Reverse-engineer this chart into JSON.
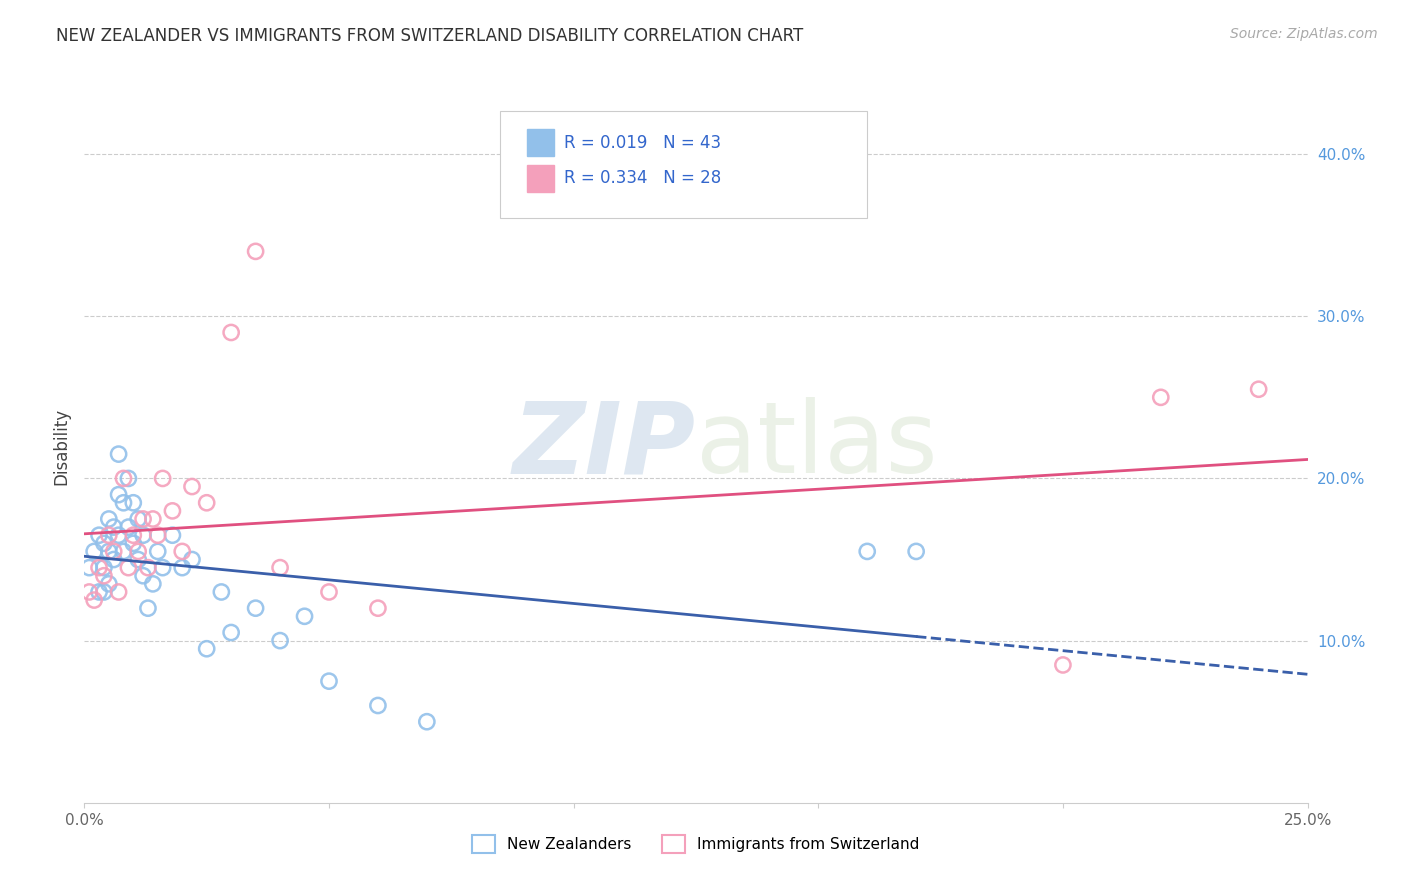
{
  "title": "NEW ZEALANDER VS IMMIGRANTS FROM SWITZERLAND DISABILITY CORRELATION CHART",
  "source": "Source: ZipAtlas.com",
  "ylabel": "Disability",
  "xlim": [
    0.0,
    0.25
  ],
  "ylim": [
    0.0,
    0.44
  ],
  "x_ticks": [
    0.0,
    0.05,
    0.1,
    0.15,
    0.2,
    0.25
  ],
  "x_tick_labels": [
    "0.0%",
    "",
    "",
    "",
    "",
    "25.0%"
  ],
  "y_ticks": [
    0.1,
    0.2,
    0.3,
    0.4
  ],
  "y_tick_labels": [
    "10.0%",
    "20.0%",
    "30.0%",
    "40.0%"
  ],
  "legend_label1": "New Zealanders",
  "legend_label2": "Immigrants from Switzerland",
  "r1": 0.019,
  "n1": 43,
  "r2": 0.334,
  "n2": 28,
  "color1": "#92c0ea",
  "color2": "#f4a0bb",
  "line_color1": "#3a5faa",
  "line_color2": "#e05080",
  "scatter1_x": [
    0.001,
    0.002,
    0.003,
    0.003,
    0.004,
    0.004,
    0.004,
    0.005,
    0.005,
    0.005,
    0.006,
    0.006,
    0.007,
    0.007,
    0.007,
    0.008,
    0.008,
    0.009,
    0.009,
    0.01,
    0.01,
    0.011,
    0.011,
    0.012,
    0.012,
    0.013,
    0.014,
    0.015,
    0.016,
    0.018,
    0.02,
    0.022,
    0.025,
    0.028,
    0.03,
    0.035,
    0.04,
    0.045,
    0.05,
    0.06,
    0.07,
    0.16,
    0.17
  ],
  "scatter1_y": [
    0.145,
    0.155,
    0.13,
    0.165,
    0.16,
    0.145,
    0.13,
    0.175,
    0.155,
    0.135,
    0.17,
    0.15,
    0.215,
    0.19,
    0.165,
    0.185,
    0.155,
    0.2,
    0.17,
    0.185,
    0.16,
    0.175,
    0.15,
    0.165,
    0.14,
    0.12,
    0.135,
    0.155,
    0.145,
    0.165,
    0.145,
    0.15,
    0.095,
    0.13,
    0.105,
    0.12,
    0.1,
    0.115,
    0.075,
    0.06,
    0.05,
    0.155,
    0.155
  ],
  "scatter2_x": [
    0.001,
    0.002,
    0.003,
    0.004,
    0.005,
    0.006,
    0.007,
    0.008,
    0.009,
    0.01,
    0.011,
    0.012,
    0.013,
    0.014,
    0.015,
    0.016,
    0.018,
    0.02,
    0.022,
    0.025,
    0.03,
    0.035,
    0.04,
    0.05,
    0.06,
    0.2,
    0.22,
    0.24
  ],
  "scatter2_y": [
    0.13,
    0.125,
    0.145,
    0.14,
    0.165,
    0.155,
    0.13,
    0.2,
    0.145,
    0.165,
    0.155,
    0.175,
    0.145,
    0.175,
    0.165,
    0.2,
    0.18,
    0.155,
    0.195,
    0.185,
    0.29,
    0.34,
    0.145,
    0.13,
    0.12,
    0.085,
    0.25,
    0.255
  ],
  "watermark": "ZIPatlas",
  "watermark_zip": "ZIP",
  "watermark_atlas": "atlas"
}
